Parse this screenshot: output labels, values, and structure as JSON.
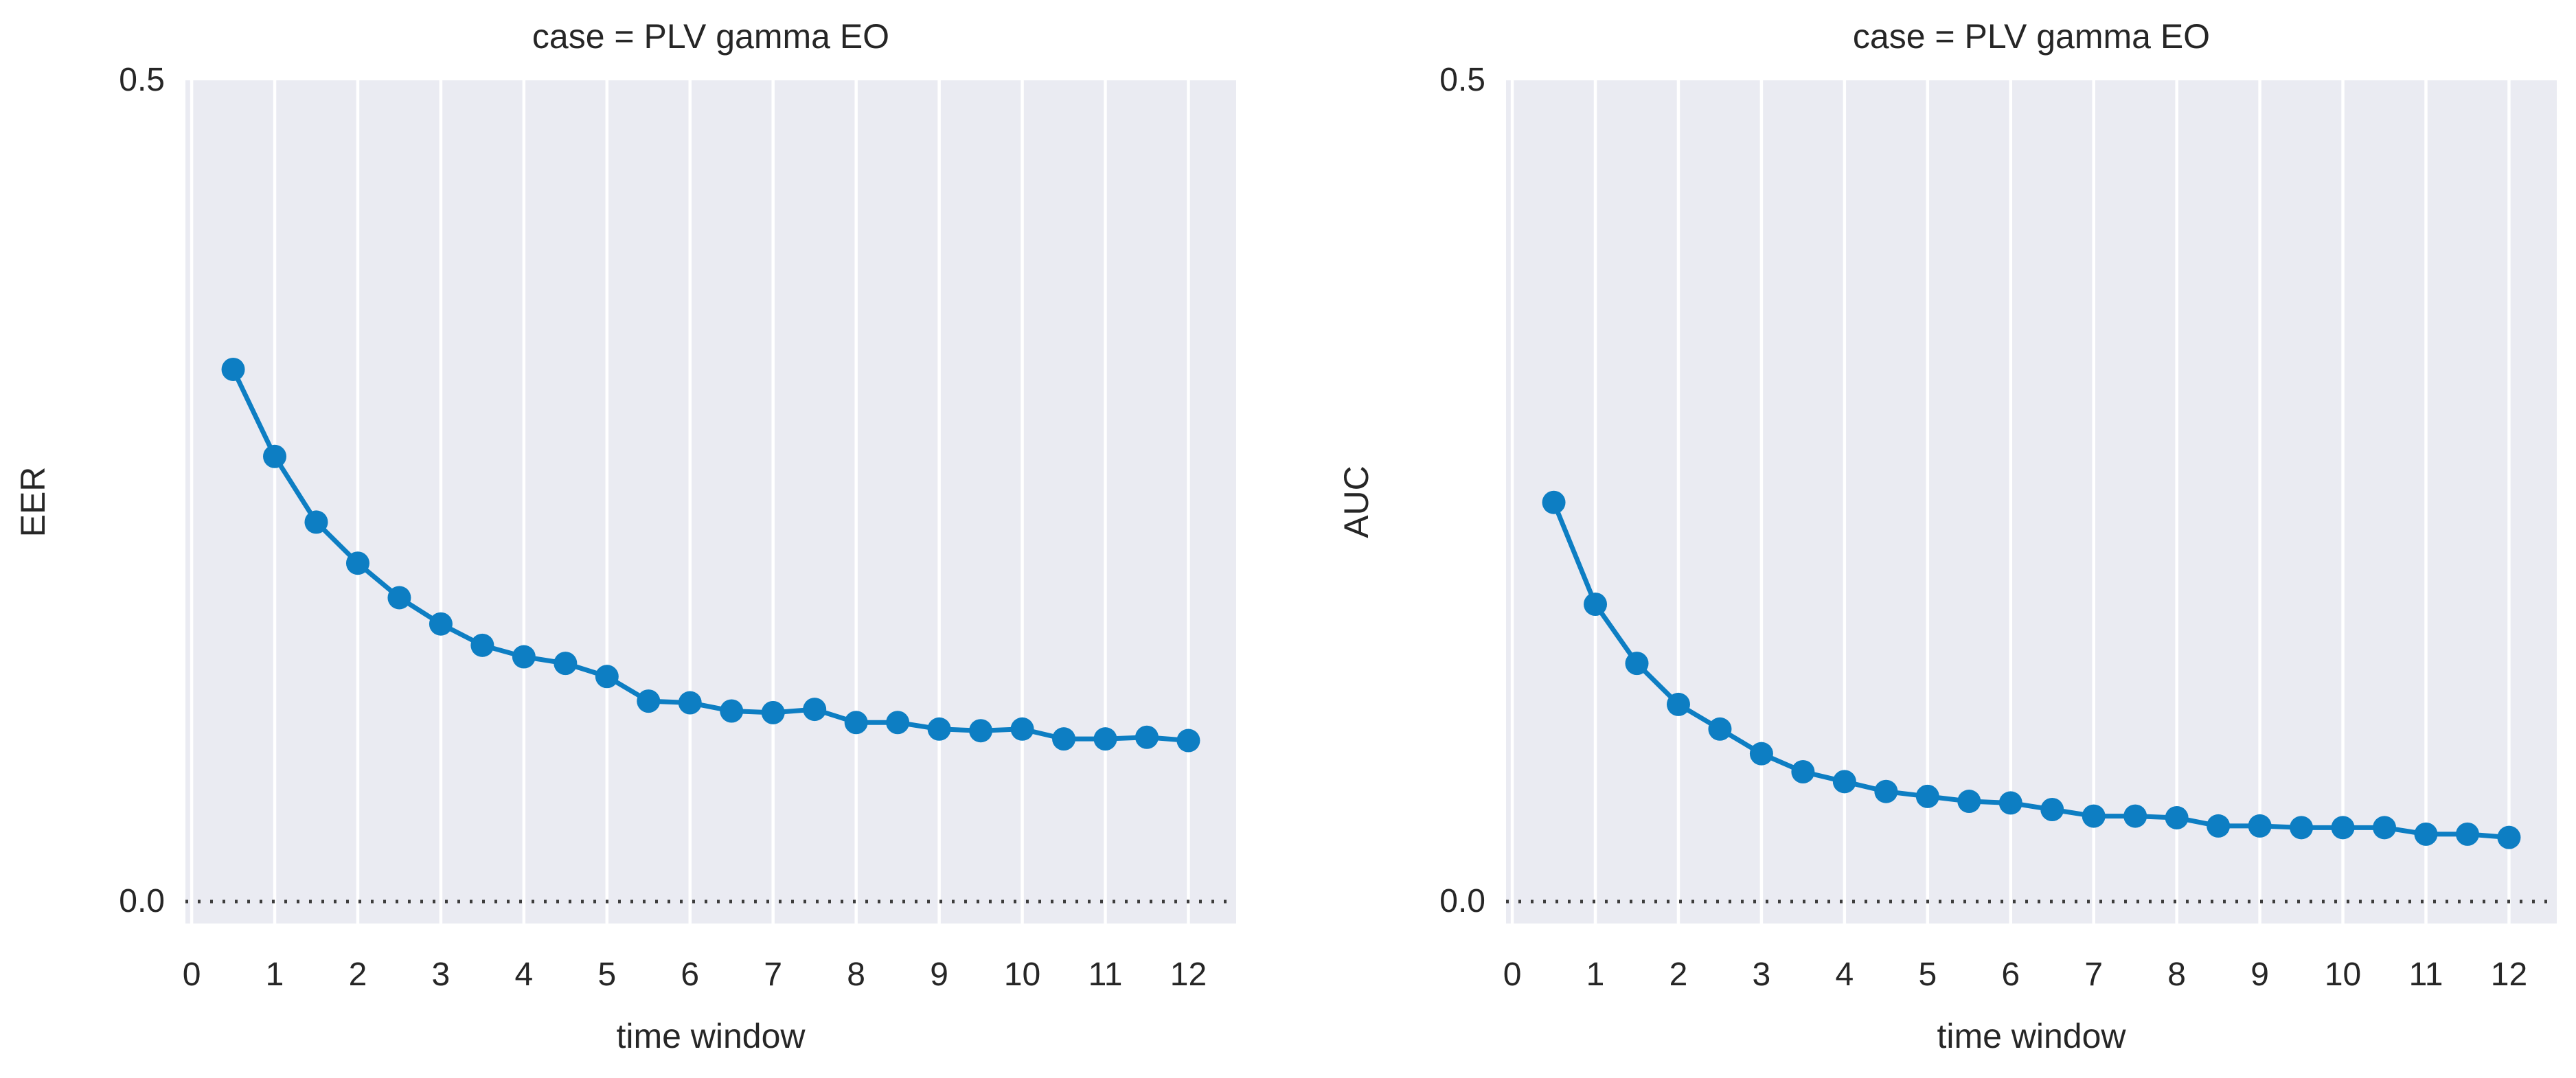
{
  "colors": {
    "series_blue": "#0d7ec3",
    "plot_background": "#eaebf2",
    "gridline": "#ffffff",
    "zero_line": "#3d3d3d",
    "text": "#262626"
  },
  "chart_data": [
    {
      "type": "line",
      "title": "case = PLV gamma EO",
      "xlabel": "time window",
      "ylabel": "EER",
      "legend": null,
      "grid": "vertical-only",
      "zero_line_style": "dotted",
      "xlim": [
        -0.075,
        12.575
      ],
      "ylim": [
        -0.0134,
        0.5
      ],
      "xtick_labels": [
        "0",
        "1",
        "2",
        "3",
        "4",
        "5",
        "6",
        "7",
        "8",
        "9",
        "10",
        "11",
        "12"
      ],
      "xticks": [
        0,
        1,
        2,
        3,
        4,
        5,
        6,
        7,
        8,
        9,
        10,
        11,
        12
      ],
      "ytick_labels": [
        "0.0",
        "0.5"
      ],
      "yticks": [
        0.0,
        0.5
      ],
      "x": [
        0.5,
        1,
        1.5,
        2,
        2.5,
        3,
        3.5,
        4,
        4.5,
        5,
        5.5,
        6,
        6.5,
        7,
        7.5,
        8,
        8.5,
        9,
        9.5,
        10,
        10.5,
        11,
        11.5,
        12
      ],
      "values": [
        0.324,
        0.271,
        0.231,
        0.206,
        0.185,
        0.169,
        0.156,
        0.149,
        0.145,
        0.137,
        0.122,
        0.121,
        0.116,
        0.115,
        0.117,
        0.109,
        0.109,
        0.105,
        0.104,
        0.105,
        0.099,
        0.099,
        0.1,
        0.098
      ]
    },
    {
      "type": "line",
      "title": "case = PLV gamma EO",
      "xlabel": "time window",
      "ylabel": "AUC",
      "legend": null,
      "grid": "vertical-only",
      "zero_line_style": "dotted",
      "xlim": [
        -0.075,
        12.575
      ],
      "ylim": [
        -0.0134,
        0.5
      ],
      "xtick_labels": [
        "0",
        "1",
        "2",
        "3",
        "4",
        "5",
        "6",
        "7",
        "8",
        "9",
        "10",
        "11",
        "12"
      ],
      "xticks": [
        0,
        1,
        2,
        3,
        4,
        5,
        6,
        7,
        8,
        9,
        10,
        11,
        12
      ],
      "ytick_labels": [
        "0.0",
        "0.5"
      ],
      "yticks": [
        0.0,
        0.5
      ],
      "x": [
        0.5,
        1,
        1.5,
        2,
        2.5,
        3,
        3.5,
        4,
        4.5,
        5,
        5.5,
        6,
        6.5,
        7,
        7.5,
        8,
        8.5,
        9,
        9.5,
        10,
        10.5,
        11,
        11.5,
        12
      ],
      "values": [
        0.243,
        0.181,
        0.145,
        0.12,
        0.105,
        0.09,
        0.079,
        0.073,
        0.067,
        0.064,
        0.061,
        0.06,
        0.056,
        0.052,
        0.052,
        0.051,
        0.046,
        0.046,
        0.045,
        0.045,
        0.045,
        0.041,
        0.041,
        0.039
      ]
    }
  ]
}
